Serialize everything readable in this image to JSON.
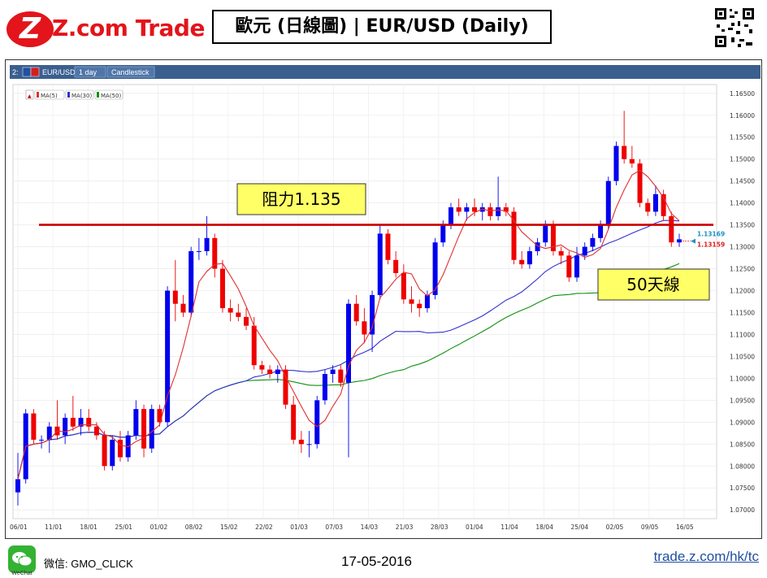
{
  "header": {
    "brand": "Z.com Trade",
    "title": "歐元 (日線圖) | EUR/USD  (Daily)"
  },
  "chart_toolbar": {
    "panel_id": "2:",
    "symbol": "EUR/USD",
    "interval": "1 day",
    "style": "Candlestick",
    "indicators": [
      "MA(5)",
      "MA(30)",
      "MA(50)"
    ]
  },
  "annotations": {
    "resistance_label": "阻力1.135",
    "ma50_label": "50天線",
    "price_tag_upper": "1.13169",
    "price_tag_lower": "1.13159"
  },
  "footer": {
    "wechat_label": "WeChat",
    "contact": "微信: GMO_CLICK",
    "date": "17-05-2016",
    "website": "trade.z.com/hk/tc"
  },
  "colors": {
    "up": "#0000ee",
    "down": "#ee0000",
    "ma5": "#e03030",
    "ma30": "#3030d0",
    "ma50": "#109010",
    "resistance": "#cc0000",
    "label_bg": "#ffff66",
    "toolbar_bg": "#3a5f8f",
    "tag_upper": "#1e90c0",
    "tag_lower": "#e02020"
  },
  "chart_data": {
    "type": "candlestick",
    "xlabels": [
      "06/01",
      "11/01",
      "18/01",
      "25/01",
      "01/02",
      "08/02",
      "15/02",
      "22/02",
      "01/03",
      "07/03",
      "14/03",
      "21/03",
      "28/03",
      "01/04",
      "11/04",
      "18/04",
      "25/04",
      "02/05",
      "09/05",
      "16/05"
    ],
    "yticks": [
      1.07,
      1.075,
      1.08,
      1.085,
      1.09,
      1.095,
      1.1,
      1.105,
      1.11,
      1.115,
      1.12,
      1.125,
      1.13,
      1.135,
      1.14,
      1.145,
      1.15,
      1.155,
      1.16,
      1.165
    ],
    "ylim": [
      1.068,
      1.167
    ],
    "resistance": 1.135,
    "candles": [
      [
        1.074,
        1.083,
        1.071,
        1.077
      ],
      [
        1.077,
        1.093,
        1.076,
        1.092
      ],
      [
        1.092,
        1.093,
        1.085,
        1.086
      ],
      [
        1.086,
        1.087,
        1.084,
        1.086
      ],
      [
        1.086,
        1.09,
        1.083,
        1.089
      ],
      [
        1.089,
        1.095,
        1.086,
        1.087
      ],
      [
        1.087,
        1.092,
        1.085,
        1.091
      ],
      [
        1.091,
        1.096,
        1.088,
        1.089
      ],
      [
        1.089,
        1.093,
        1.087,
        1.091
      ],
      [
        1.091,
        1.093,
        1.088,
        1.089
      ],
      [
        1.089,
        1.09,
        1.086,
        1.087
      ],
      [
        1.087,
        1.088,
        1.079,
        1.08
      ],
      [
        1.08,
        1.087,
        1.079,
        1.086
      ],
      [
        1.086,
        1.088,
        1.081,
        1.082
      ],
      [
        1.082,
        1.088,
        1.081,
        1.087
      ],
      [
        1.087,
        1.095,
        1.086,
        1.093
      ],
      [
        1.093,
        1.094,
        1.082,
        1.084
      ],
      [
        1.084,
        1.094,
        1.083,
        1.093
      ],
      [
        1.093,
        1.094,
        1.089,
        1.09
      ],
      [
        1.09,
        1.121,
        1.089,
        1.12
      ],
      [
        1.12,
        1.127,
        1.113,
        1.117
      ],
      [
        1.117,
        1.119,
        1.114,
        1.115
      ],
      [
        1.115,
        1.13,
        1.114,
        1.129
      ],
      [
        1.129,
        1.132,
        1.127,
        1.129
      ],
      [
        1.129,
        1.137,
        1.128,
        1.132
      ],
      [
        1.132,
        1.133,
        1.123,
        1.125
      ],
      [
        1.125,
        1.127,
        1.115,
        1.116
      ],
      [
        1.116,
        1.118,
        1.113,
        1.115
      ],
      [
        1.115,
        1.117,
        1.113,
        1.114
      ],
      [
        1.114,
        1.116,
        1.111,
        1.112
      ],
      [
        1.112,
        1.114,
        1.102,
        1.103
      ],
      [
        1.103,
        1.104,
        1.101,
        1.102
      ],
      [
        1.102,
        1.103,
        1.1,
        1.101
      ],
      [
        1.101,
        1.103,
        1.099,
        1.102
      ],
      [
        1.102,
        1.103,
        1.093,
        1.094
      ],
      [
        1.094,
        1.096,
        1.085,
        1.086
      ],
      [
        1.086,
        1.088,
        1.083,
        1.085
      ],
      [
        1.085,
        1.088,
        1.082,
        1.085
      ],
      [
        1.085,
        1.096,
        1.084,
        1.095
      ],
      [
        1.095,
        1.102,
        1.094,
        1.101
      ],
      [
        1.101,
        1.103,
        1.099,
        1.102
      ],
      [
        1.102,
        1.103,
        1.098,
        1.099
      ],
      [
        1.099,
        1.118,
        1.082,
        1.117
      ],
      [
        1.117,
        1.119,
        1.112,
        1.113
      ],
      [
        1.113,
        1.116,
        1.108,
        1.11
      ],
      [
        1.11,
        1.12,
        1.106,
        1.119
      ],
      [
        1.119,
        1.135,
        1.118,
        1.133
      ],
      [
        1.133,
        1.134,
        1.126,
        1.127
      ],
      [
        1.127,
        1.129,
        1.123,
        1.124
      ],
      [
        1.124,
        1.126,
        1.117,
        1.118
      ],
      [
        1.118,
        1.121,
        1.115,
        1.117
      ],
      [
        1.117,
        1.118,
        1.114,
        1.116
      ],
      [
        1.116,
        1.12,
        1.115,
        1.119
      ],
      [
        1.119,
        1.132,
        1.118,
        1.131
      ],
      [
        1.131,
        1.136,
        1.13,
        1.135
      ],
      [
        1.135,
        1.14,
        1.134,
        1.139
      ],
      [
        1.139,
        1.141,
        1.137,
        1.138
      ],
      [
        1.138,
        1.14,
        1.136,
        1.139
      ],
      [
        1.139,
        1.141,
        1.137,
        1.138
      ],
      [
        1.138,
        1.14,
        1.136,
        1.139
      ],
      [
        1.139,
        1.14,
        1.136,
        1.137
      ],
      [
        1.137,
        1.146,
        1.136,
        1.139
      ],
      [
        1.139,
        1.14,
        1.137,
        1.138
      ],
      [
        1.138,
        1.139,
        1.126,
        1.127
      ],
      [
        1.127,
        1.129,
        1.125,
        1.126
      ],
      [
        1.126,
        1.13,
        1.125,
        1.129
      ],
      [
        1.129,
        1.132,
        1.128,
        1.131
      ],
      [
        1.131,
        1.136,
        1.13,
        1.135
      ],
      [
        1.135,
        1.136,
        1.128,
        1.129
      ],
      [
        1.129,
        1.13,
        1.126,
        1.128
      ],
      [
        1.128,
        1.129,
        1.122,
        1.123
      ],
      [
        1.123,
        1.13,
        1.122,
        1.128
      ],
      [
        1.128,
        1.131,
        1.127,
        1.13
      ],
      [
        1.13,
        1.133,
        1.129,
        1.132
      ],
      [
        1.132,
        1.136,
        1.131,
        1.135
      ],
      [
        1.135,
        1.146,
        1.134,
        1.145
      ],
      [
        1.145,
        1.154,
        1.144,
        1.153
      ],
      [
        1.153,
        1.161,
        1.149,
        1.15
      ],
      [
        1.15,
        1.153,
        1.148,
        1.149
      ],
      [
        1.149,
        1.15,
        1.139,
        1.14
      ],
      [
        1.14,
        1.141,
        1.137,
        1.138
      ],
      [
        1.138,
        1.144,
        1.137,
        1.142
      ],
      [
        1.142,
        1.143,
        1.136,
        1.137
      ],
      [
        1.137,
        1.138,
        1.13,
        1.131
      ],
      [
        1.131,
        1.133,
        1.13,
        1.1317
      ]
    ]
  }
}
